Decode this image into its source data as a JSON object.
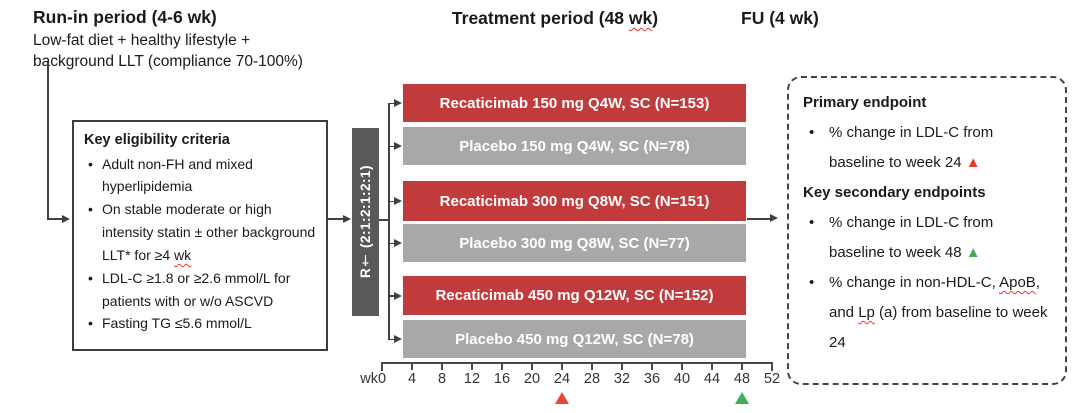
{
  "run_in": {
    "title": "Run-in period (4-6 wk)",
    "line1": "Low-fat diet + healthy lifestyle +",
    "line2": "background LLT (compliance 70-100%)"
  },
  "treatment_header": {
    "pre": "Treatment period (48 ",
    "wavy": "wk",
    "post": ")"
  },
  "fu_header": "FU (4 wk)",
  "eligibility": {
    "title": "Key eligibility criteria",
    "bullet_char": "•",
    "bullet1": "Adult non-FH and mixed hyperlipidemia",
    "bullet2_pre": "On stable moderate or high intensity statin ± other background LLT* for ≥4 ",
    "bullet2_wavy": "wk",
    "bullet3": "LDL-C ≥1.8 or ≥2.6 mmol/L for patients with or w/o ASCVD",
    "bullet4": "Fasting TG ≤5.6 mmol/L"
  },
  "randomization": {
    "label": "R† (2:1:2:1:2:1)"
  },
  "arms": [
    {
      "label": "Recaticimab 150 mg Q4W, SC (N=153)",
      "type": "active"
    },
    {
      "label": "Placebo 150 mg Q4W, SC (N=78)",
      "type": "placebo"
    },
    {
      "label": "Recaticimab 300 mg Q8W, SC (N=151)",
      "type": "active"
    },
    {
      "label": "Placebo 300 mg Q8W, SC (N=77)",
      "type": "placebo"
    },
    {
      "label": "Recaticimab 450 mg Q12W, SC (N=152)",
      "type": "active"
    },
    {
      "label": "Placebo 450 mg Q12W, SC (N=78)",
      "type": "placebo"
    }
  ],
  "axis": {
    "unit": "wk",
    "ticks": [
      "0",
      "4",
      "8",
      "12",
      "16",
      "20",
      "24",
      "28",
      "32",
      "36",
      "40",
      "44",
      "48",
      "52"
    ],
    "markers": [
      {
        "at": "24",
        "color": "#e8453c",
        "meaning": "primary-endpoint-week"
      },
      {
        "at": "48",
        "color": "#3dae5b",
        "meaning": "secondary-endpoint-week"
      }
    ]
  },
  "endpoints": {
    "primary_title": "Primary endpoint",
    "bullet_char": "•",
    "primary_bullet": "% change in LDL-C from baseline to week 24 ",
    "primary_marker": "▲",
    "secondary_title": "Key secondary endpoints",
    "secondary_bullet1": "% change in LDL-C from baseline to week 48 ",
    "secondary_marker": "▲",
    "secondary_bullet2_pre": "% change in non-HDL-C, ",
    "secondary_bullet2_wavy1": "ApoB",
    "secondary_bullet2_mid": ", and ",
    "secondary_bullet2_wavy2": "Lp",
    "secondary_bullet2_post": " (a) from baseline to week 24"
  },
  "colors": {
    "bar_active": "#c13b3c",
    "bar_placebo": "#a8a8a8",
    "randomization": "#595959",
    "triangle_red": "#ed3626",
    "triangle_green": "#3cb054"
  }
}
